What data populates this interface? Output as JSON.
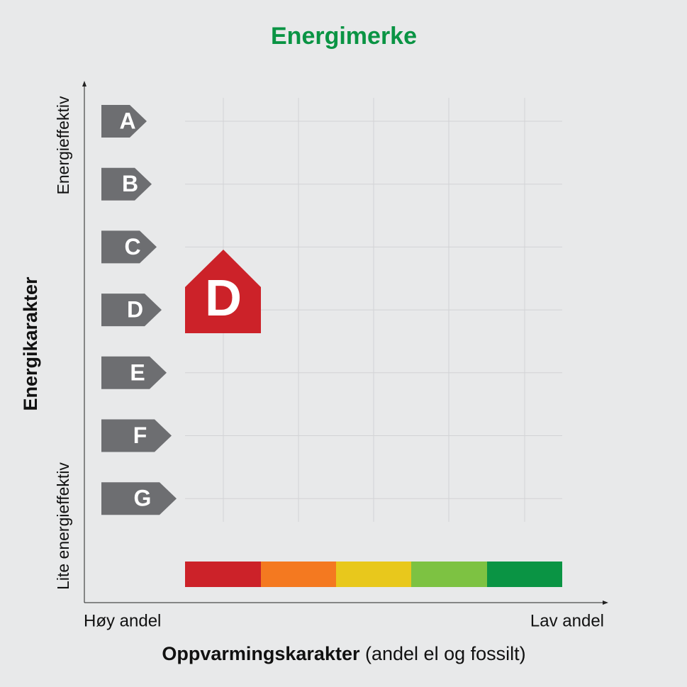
{
  "title": "Energimerke",
  "y_axis": {
    "label": "Energikarakter",
    "top": "Energieffektiv",
    "bottom": "Lite energieffektiv"
  },
  "x_axis": {
    "label": "Oppvarmingskarakter",
    "label_note": "(andel el og fossilt)",
    "left": "Høy andel",
    "right": "Lav andel"
  },
  "letters": [
    "A",
    "B",
    "C",
    "D",
    "E",
    "F",
    "G"
  ],
  "rating": "D"
}
